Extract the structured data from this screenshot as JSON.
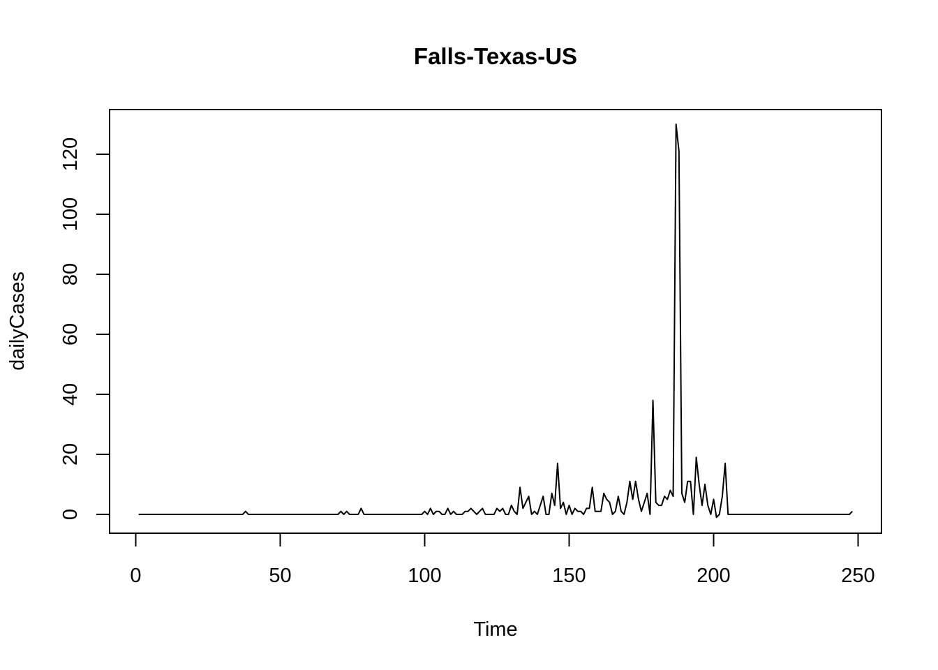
{
  "chart_data": {
    "type": "line",
    "title": "Falls-Texas-US",
    "xlabel": "Time",
    "ylabel": "dailyCases",
    "xlim": [
      1,
      248
    ],
    "ylim": [
      -1,
      130
    ],
    "xticks": [
      0,
      50,
      100,
      150,
      200,
      250
    ],
    "yticks": [
      0,
      20,
      40,
      60,
      80,
      100,
      120
    ],
    "grid": false,
    "series": [
      {
        "points": [
          [
            1,
            0
          ],
          [
            37,
            0
          ],
          [
            38,
            1
          ],
          [
            39,
            0
          ],
          [
            70,
            0
          ],
          [
            71,
            1
          ],
          [
            72,
            0
          ],
          [
            73,
            1
          ],
          [
            74,
            0
          ],
          [
            77,
            0
          ],
          [
            78,
            2
          ],
          [
            79,
            0
          ],
          [
            99,
            0
          ],
          [
            100,
            1
          ],
          [
            101,
            0
          ],
          [
            102,
            2
          ],
          [
            103,
            0
          ],
          [
            104,
            1
          ],
          [
            105,
            1
          ],
          [
            106,
            0
          ],
          [
            107,
            0
          ],
          [
            108,
            2
          ],
          [
            109,
            0
          ],
          [
            110,
            1
          ],
          [
            111,
            0
          ],
          [
            112,
            0
          ],
          [
            113,
            0
          ],
          [
            114,
            1
          ],
          [
            115,
            1
          ],
          [
            116,
            2
          ],
          [
            117,
            1
          ],
          [
            118,
            0
          ],
          [
            119,
            1
          ],
          [
            120,
            2
          ],
          [
            121,
            0
          ],
          [
            122,
            0
          ],
          [
            123,
            0
          ],
          [
            124,
            0
          ],
          [
            125,
            2
          ],
          [
            126,
            1
          ],
          [
            127,
            2
          ],
          [
            128,
            0
          ],
          [
            129,
            0
          ],
          [
            130,
            3
          ],
          [
            131,
            1
          ],
          [
            132,
            0
          ],
          [
            133,
            9
          ],
          [
            134,
            2
          ],
          [
            135,
            4
          ],
          [
            136,
            6
          ],
          [
            137,
            0
          ],
          [
            138,
            1
          ],
          [
            139,
            0
          ],
          [
            140,
            3
          ],
          [
            141,
            6
          ],
          [
            142,
            0
          ],
          [
            143,
            0
          ],
          [
            144,
            7
          ],
          [
            145,
            3
          ],
          [
            146,
            17
          ],
          [
            147,
            2
          ],
          [
            148,
            4
          ],
          [
            149,
            0
          ],
          [
            150,
            3
          ],
          [
            151,
            0
          ],
          [
            152,
            2
          ],
          [
            153,
            1
          ],
          [
            154,
            1
          ],
          [
            155,
            0
          ],
          [
            156,
            2
          ],
          [
            157,
            2
          ],
          [
            158,
            9
          ],
          [
            159,
            1
          ],
          [
            160,
            1
          ],
          [
            161,
            1
          ],
          [
            162,
            7
          ],
          [
            163,
            5
          ],
          [
            164,
            4
          ],
          [
            165,
            0
          ],
          [
            166,
            1
          ],
          [
            167,
            6
          ],
          [
            168,
            1
          ],
          [
            169,
            0
          ],
          [
            170,
            4
          ],
          [
            171,
            11
          ],
          [
            172,
            5
          ],
          [
            173,
            11
          ],
          [
            174,
            5
          ],
          [
            175,
            1
          ],
          [
            176,
            4
          ],
          [
            177,
            7
          ],
          [
            178,
            0
          ],
          [
            179,
            38
          ],
          [
            180,
            4
          ],
          [
            181,
            3
          ],
          [
            182,
            3
          ],
          [
            183,
            6
          ],
          [
            184,
            5
          ],
          [
            185,
            8
          ],
          [
            186,
            6
          ],
          [
            187,
            130
          ],
          [
            188,
            121
          ],
          [
            189,
            7
          ],
          [
            190,
            4
          ],
          [
            191,
            11
          ],
          [
            192,
            11
          ],
          [
            193,
            0
          ],
          [
            194,
            19
          ],
          [
            195,
            10
          ],
          [
            196,
            3
          ],
          [
            197,
            10
          ],
          [
            198,
            3
          ],
          [
            199,
            0
          ],
          [
            200,
            5
          ],
          [
            201,
            -1
          ],
          [
            202,
            0
          ],
          [
            203,
            6
          ],
          [
            204,
            17
          ],
          [
            205,
            0
          ],
          [
            206,
            0
          ],
          [
            247,
            0
          ],
          [
            248,
            1
          ]
        ]
      }
    ]
  }
}
